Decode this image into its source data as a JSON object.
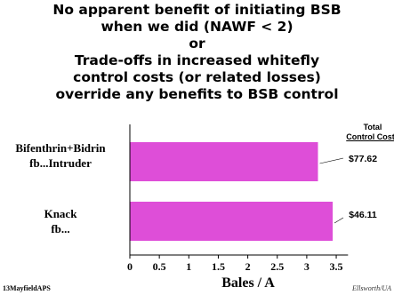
{
  "title_lines": [
    "No apparent benefit of initiating BSB",
    "when we did (NAWF < 2)",
    "or",
    "Trade-offs in increased whitefly",
    "control costs (or related losses)",
    "override any benefits to BSB control"
  ],
  "side_header": {
    "line1": "Total",
    "line2": "Control Costs"
  },
  "footer": {
    "left": "13MayfieldAPS",
    "right": "Ellsworth/UA"
  },
  "colors": {
    "bar": "#de4ed8"
  },
  "chart_data": {
    "type": "bar",
    "orientation": "horizontal",
    "categories": [
      {
        "line1": "Bifenthrin+Bidrin",
        "line2": "fb...Intruder"
      },
      {
        "line1": "Knack",
        "line2": "fb..."
      }
    ],
    "values": [
      3.19,
      3.44
    ],
    "data_labels": [
      "$77.62",
      "$46.11"
    ],
    "xlabel": "Bales / A",
    "xlim": [
      0,
      4
    ],
    "xticks": [
      "0",
      "0.5",
      "1",
      "1.5",
      "2",
      "2.5",
      "3",
      "3.5"
    ],
    "grid": false,
    "legend": "none"
  }
}
